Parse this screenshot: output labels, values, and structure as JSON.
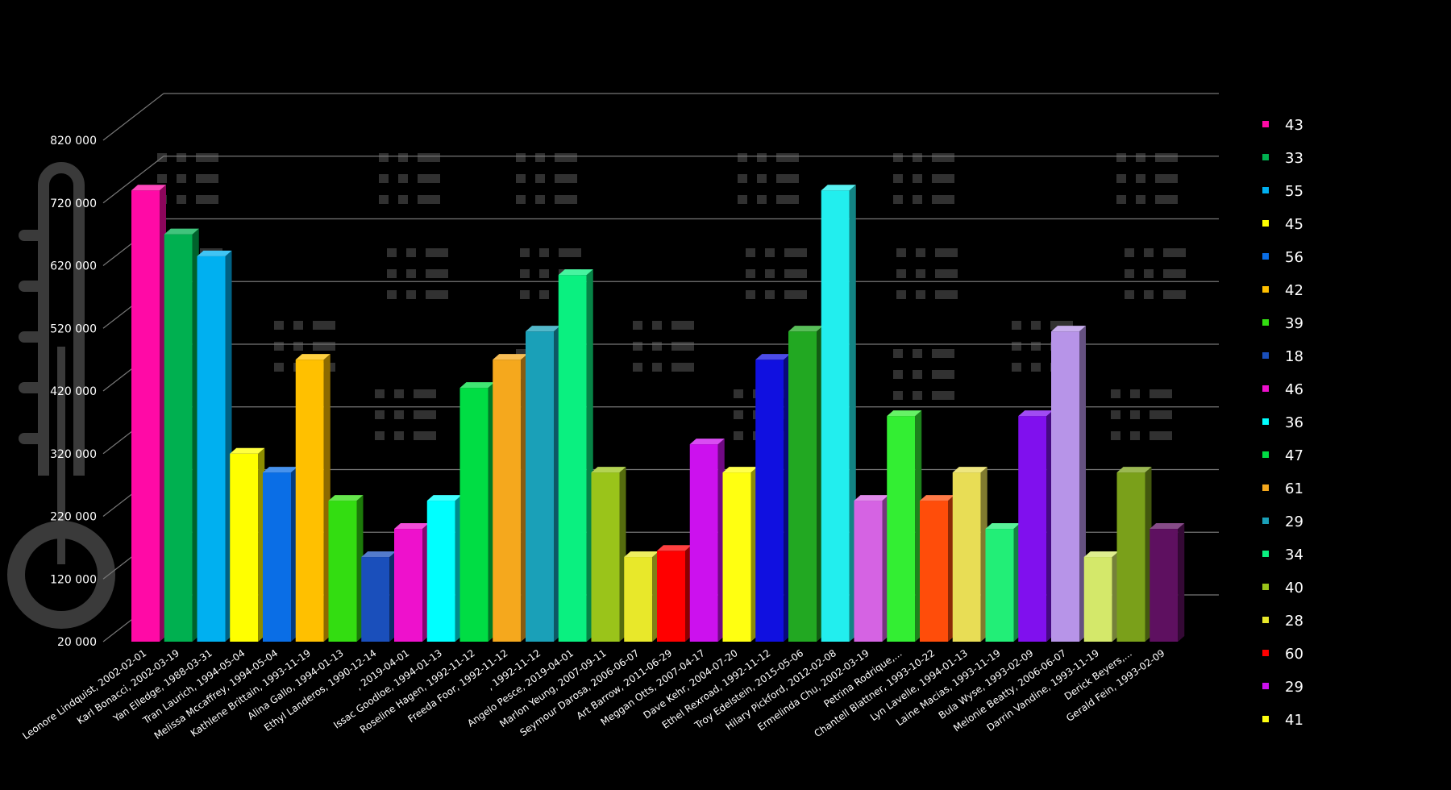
{
  "chart_data": {
    "type": "bar",
    "title": "",
    "xlabel": "",
    "ylabel": "",
    "ylim": [
      20000,
      820000
    ],
    "yticks": [
      "20 000",
      "120 000",
      "220 000",
      "320 000",
      "420 000",
      "520 000",
      "620 000",
      "720 000",
      "820 000"
    ],
    "yticks_values": [
      20000,
      120000,
      220000,
      320000,
      420000,
      520000,
      620000,
      720000,
      820000
    ],
    "categories": [
      "Leonore Lindquist, 2002-02-01",
      "Karl Bonacci, 2002-03-19",
      "Yan Elledge, 1988-03-31",
      "Tran Laurich, 1994-05-04",
      "Melissa Mccaffrey, 1994-05-04",
      "Kathlene Brittain, 1993-11-19",
      "Alina Gallo, 1994-01-13",
      "Ethyl Landeros, 1990-12-14",
      ", 2019-04-01",
      "Issac Goodloe, 1994-01-13",
      "Roseline Hagen, 1992-11-12",
      "Freeda Foor, 1992-11-12",
      ", 1992-11-12",
      "Angelo Pesce, 2019-04-01",
      "Marlon Yeung, 2007-09-11",
      "Seymour Darosa, 2006-06-07",
      "Art Barrow, 2011-06-29",
      "Meggan Otts, 2007-04-17",
      "Dave Kehr, 2004-07-20",
      "Ethel Rexroad, 1992-11-12",
      "Troy Edelstein, 2015-05-06",
      "Hilary Pickford, 2012-02-08",
      "Ermelinda Chu, 2002-03-19",
      "Petrina Rodrique,...",
      "Chantell Blattner, 1993-10-22",
      "Lyn Lavelle, 1994-01-13",
      "Laine Macias, 1993-11-19",
      "Bula Wyse, 1993-02-09",
      "Melonie Beatty, 2006-06-07",
      "Darrin Vandine, 1993-11-19",
      "Derick Beyers,...",
      "Gerald Fein, 1993-02-09"
    ],
    "values": [
      740000,
      670000,
      635000,
      320000,
      290000,
      470000,
      245000,
      155000,
      200000,
      245000,
      425000,
      470000,
      515000,
      605000,
      290000,
      155000,
      165000,
      335000,
      290000,
      470000,
      515000,
      740000,
      245000,
      380000,
      245000,
      290000,
      200000,
      380000,
      515000,
      155000,
      290000,
      200000
    ],
    "colors": [
      "#ff0aa6",
      "#00b050",
      "#00b0f0",
      "#ffff00",
      "#0a6ee6",
      "#ffc000",
      "#33dd11",
      "#1a4fbb",
      "#ee11cc",
      "#00ffff",
      "#00dd44",
      "#f5a81d",
      "#1aa0b8",
      "#0af080",
      "#9ac41a",
      "#e8e82a",
      "#ff0000",
      "#cc11ee",
      "#ffff11",
      "#1010e0",
      "#22a822",
      "#22eeee",
      "#d563e3",
      "#33ee33",
      "#ff4d0a",
      "#e8dd55",
      "#22ee77",
      "#8010ee",
      "#b794e8",
      "#d4e86a",
      "#7aa01a",
      "#5e1060"
    ],
    "legend": {
      "position": "right",
      "labels": [
        "43",
        "33",
        "55",
        "45",
        "56",
        "42",
        "39",
        "18",
        "46",
        "36",
        "47",
        "61",
        "29",
        "34",
        "40",
        "28",
        "60",
        "29",
        "41"
      ],
      "colors": [
        "#ff0aa6",
        "#00b050",
        "#00b0f0",
        "#ffff00",
        "#0a6ee6",
        "#ffc000",
        "#33dd11",
        "#1a4fbb",
        "#ee11cc",
        "#00ffff",
        "#00dd44",
        "#f5a81d",
        "#1aa0b8",
        "#0af080",
        "#9ac41a",
        "#e8e82a",
        "#ff0000",
        "#cc11ee",
        "#ffff11"
      ]
    },
    "grid": true,
    "style": "3d-bar"
  }
}
